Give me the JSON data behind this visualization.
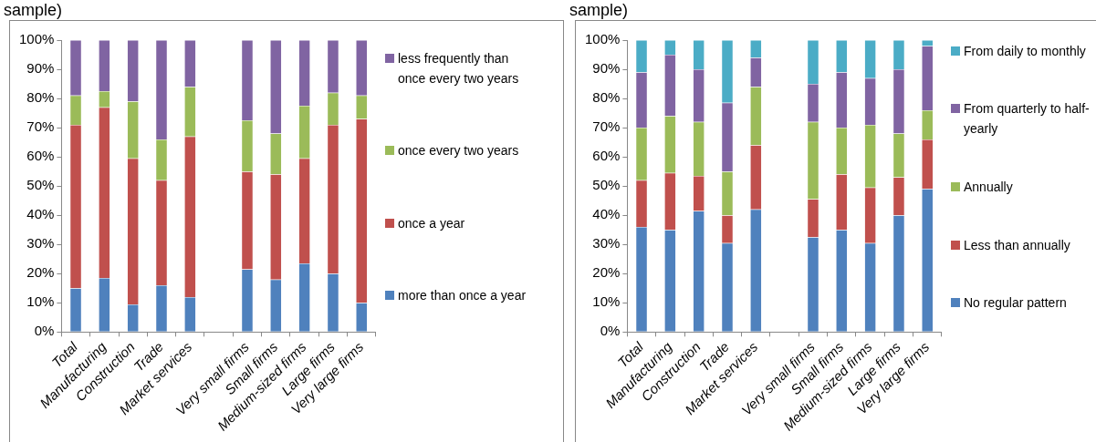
{
  "chart_data": [
    {
      "type": "bar",
      "title": "sample)",
      "stacked": true,
      "legend": "right",
      "grid": false,
      "categories": [
        "Total",
        "Manufacturing",
        "Construction",
        "Trade",
        "Market services",
        null,
        "Very small firms",
        "Small firms",
        "Medium-sized firms",
        "Large firms",
        "Very large firms"
      ],
      "ylim": [
        0,
        100
      ],
      "yticks": [
        {
          "value": 0,
          "label": "0%"
        },
        {
          "value": 10,
          "label": "10%"
        },
        {
          "value": 20,
          "label": "20%"
        },
        {
          "value": 30,
          "label": "30%"
        },
        {
          "value": 40,
          "label": "40%"
        },
        {
          "value": 50,
          "label": "50%"
        },
        {
          "value": 60,
          "label": "60%"
        },
        {
          "value": 70,
          "label": "70%"
        },
        {
          "value": 80,
          "label": "80%"
        },
        {
          "value": 90,
          "label": "90%"
        },
        {
          "value": 100,
          "label": "100%"
        }
      ],
      "series": [
        {
          "name": "more than once a year",
          "color": "#4f81bd",
          "values": [
            15,
            18.5,
            9.5,
            16,
            12,
            null,
            21.5,
            18,
            23.5,
            20,
            10
          ]
        },
        {
          "name": "once a year",
          "color": "#c0504d",
          "values": [
            56,
            58.5,
            50,
            36,
            55,
            null,
            33.5,
            36,
            36,
            51,
            63
          ]
        },
        {
          "name": "once every two years",
          "color": "#9bbb59",
          "values": [
            10,
            5.5,
            19.5,
            14,
            17,
            null,
            17.5,
            14,
            18,
            11,
            8
          ]
        },
        {
          "name": "less frequently than once every two years",
          "color": "#8064a2",
          "values": [
            19,
            17.5,
            21,
            34,
            16,
            null,
            27.5,
            32,
            22.5,
            18,
            19
          ]
        }
      ]
    },
    {
      "type": "bar",
      "title": "sample)",
      "stacked": true,
      "legend": "right",
      "grid": false,
      "categories": [
        "Total",
        "Manufacturing",
        "Construction",
        "Trade",
        "Market services",
        null,
        "Very small firms",
        "Small firms",
        "Medium-sized firms",
        "Large firms",
        "Very large firms"
      ],
      "ylim": [
        0,
        100
      ],
      "yticks": [
        {
          "value": 0,
          "label": "0%"
        },
        {
          "value": 10,
          "label": "10%"
        },
        {
          "value": 20,
          "label": "20%"
        },
        {
          "value": 30,
          "label": "30%"
        },
        {
          "value": 40,
          "label": "40%"
        },
        {
          "value": 50,
          "label": "50%"
        },
        {
          "value": 60,
          "label": "60%"
        },
        {
          "value": 70,
          "label": "70%"
        },
        {
          "value": 80,
          "label": "80%"
        },
        {
          "value": 90,
          "label": "90%"
        },
        {
          "value": 100,
          "label": "100%"
        }
      ],
      "series": [
        {
          "name": "No regular pattern",
          "color": "#4f81bd",
          "values": [
            36,
            35,
            41.5,
            30.5,
            42,
            null,
            32.5,
            35,
            30.5,
            40,
            49
          ]
        },
        {
          "name": "Less than annually",
          "color": "#c0504d",
          "values": [
            16,
            19.5,
            12,
            9.5,
            22,
            null,
            13,
            19,
            19,
            13,
            17
          ]
        },
        {
          "name": "Annually",
          "color": "#9bbb59",
          "values": [
            18,
            19.5,
            18.5,
            15,
            20,
            null,
            26.5,
            16,
            21.5,
            15,
            10
          ]
        },
        {
          "name": "From quarterly to half-yearly",
          "color": "#8064a2",
          "values": [
            19,
            21,
            18,
            23.5,
            10,
            null,
            13,
            19,
            16,
            22,
            22
          ]
        },
        {
          "name": "From daily to monthly",
          "color": "#4bacc6",
          "values": [
            11,
            5,
            10,
            21.5,
            6,
            null,
            15,
            11,
            13,
            10,
            2
          ]
        }
      ]
    }
  ]
}
